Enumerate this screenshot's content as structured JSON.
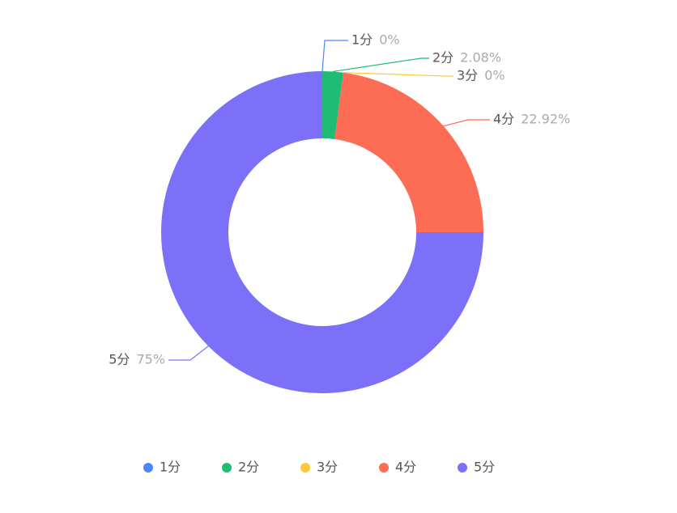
{
  "chart_data": {
    "type": "donut",
    "categories": [
      "1分",
      "2分",
      "3分",
      "4分",
      "5分"
    ],
    "values": [
      0,
      2.08,
      0,
      22.92,
      75
    ],
    "value_labels": [
      "0%",
      "2.08%",
      "0%",
      "22.92%",
      "75%"
    ],
    "colors": [
      "#4a86f5",
      "#1ebd73",
      "#fcc93a",
      "#fd6c55",
      "#7b70f7"
    ],
    "legend": "bottom"
  }
}
